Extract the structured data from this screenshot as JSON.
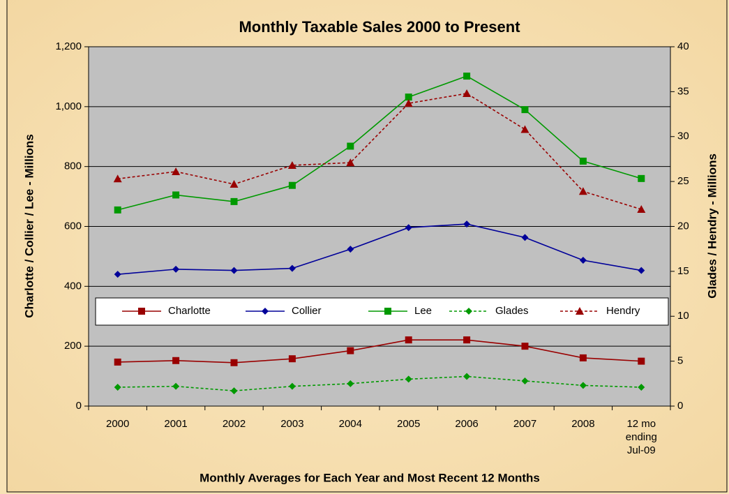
{
  "chart_data": {
    "type": "line",
    "title": "Monthly Taxable Sales 2000 to Present",
    "x_label": "Monthly Averages  for Each Year and Most Recent  12 Months",
    "y_label": "Charlotte / Collier / Lee - Millions",
    "y2_label": "Glades / Hendry - Millions",
    "categories": [
      "2000",
      "2001",
      "2002",
      "2003",
      "2004",
      "2005",
      "2006",
      "2007",
      "2008",
      "12 mo\nending\nJul-09"
    ],
    "ylim": [
      0,
      1200
    ],
    "yticks": [
      0,
      200,
      400,
      600,
      800,
      {
        "value": 1000,
        "label": "1,000"
      },
      {
        "value": 1200,
        "label": "1,200"
      }
    ],
    "y2lim": [
      0,
      40
    ],
    "y2ticks": [
      0,
      5,
      10,
      15,
      20,
      25,
      30,
      35,
      40
    ],
    "grid": true,
    "legend": "middle",
    "series": [
      {
        "name": "Charlotte",
        "color": "#990000",
        "marker": "square",
        "dash": false,
        "values": [
          147,
          152,
          145,
          158,
          185,
          221,
          221,
          200,
          161,
          150
        ]
      },
      {
        "name": "Collier",
        "color": "#000099",
        "marker": "diamond",
        "dash": false,
        "values": [
          440,
          457,
          453,
          460,
          524,
          596,
          608,
          563,
          487,
          453
        ]
      },
      {
        "name": "Lee",
        "color": "#009900",
        "marker": "square",
        "dash": false,
        "values": [
          655,
          705,
          683,
          737,
          868,
          1032,
          1102,
          990,
          818,
          760
        ]
      },
      {
        "name": "Glades",
        "color": "#009900",
        "marker": "diamond",
        "dash": true,
        "axis": "y2",
        "values": [
          2.1,
          2.2,
          1.7,
          2.2,
          2.5,
          3.0,
          3.3,
          2.8,
          2.3,
          2.1
        ]
      },
      {
        "name": "Hendry",
        "color": "#990000",
        "marker": "triangle",
        "dash": true,
        "axis": "y2",
        "values": [
          25.3,
          26.1,
          24.7,
          26.8,
          27.1,
          33.7,
          34.8,
          30.8,
          23.9,
          21.9
        ]
      }
    ]
  }
}
